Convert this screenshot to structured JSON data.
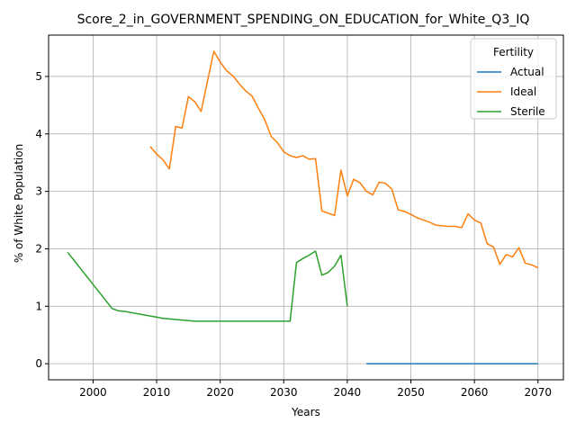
{
  "chart_data": {
    "type": "line",
    "title": "Score_2_in_GOVERNMENT_SPENDING_ON_EDUCATION_for_White_Q3_IQ",
    "xlabel": "Years",
    "ylabel": "% of White Population",
    "xlim": [
      1993,
      2074
    ],
    "ylim": [
      -0.28,
      5.72
    ],
    "xticks": [
      2000,
      2010,
      2020,
      2030,
      2040,
      2050,
      2060,
      2070
    ],
    "yticks": [
      0,
      1,
      2,
      3,
      4,
      5
    ],
    "grid": true,
    "legend": {
      "title": "Fertility",
      "placement": "top-right"
    },
    "series": [
      {
        "name": "Actual",
        "color": "#1f77b4",
        "x": [
          2043,
          2045,
          2050,
          2055,
          2060,
          2065,
          2070
        ],
        "y": [
          0,
          0,
          0,
          0,
          0,
          0,
          0
        ]
      },
      {
        "name": "Ideal",
        "color": "#ff7f0e",
        "x": [
          2009,
          2010,
          2011,
          2012,
          2013,
          2014,
          2015,
          2016,
          2017,
          2018,
          2019,
          2020,
          2021,
          2022,
          2023,
          2024,
          2025,
          2026,
          2027,
          2028,
          2029,
          2030,
          2031,
          2032,
          2033,
          2034,
          2035,
          2036,
          2037,
          2038,
          2039,
          2040,
          2041,
          2042,
          2043,
          2044,
          2045,
          2046,
          2047,
          2048,
          2049,
          2050,
          2051,
          2052,
          2053,
          2054,
          2055,
          2056,
          2057,
          2058,
          2059,
          2060,
          2061,
          2062,
          2063,
          2064,
          2065,
          2066,
          2067,
          2068,
          2069,
          2070
        ],
        "y": [
          3.78,
          3.65,
          3.55,
          3.39,
          4.13,
          4.1,
          4.65,
          4.56,
          4.39,
          4.92,
          5.44,
          5.25,
          5.1,
          5.01,
          4.87,
          4.75,
          4.66,
          4.45,
          4.25,
          3.96,
          3.85,
          3.69,
          3.62,
          3.59,
          3.62,
          3.56,
          3.57,
          2.66,
          2.62,
          2.58,
          3.37,
          2.92,
          3.21,
          3.15,
          3.0,
          2.94,
          3.16,
          3.14,
          3.04,
          2.68,
          2.65,
          2.6,
          2.54,
          2.5,
          2.46,
          2.41,
          2.4,
          2.39,
          2.39,
          2.37,
          2.61,
          2.5,
          2.45,
          2.09,
          2.03,
          1.73,
          1.9,
          1.86,
          2.02,
          1.75,
          1.72,
          1.67
        ]
      },
      {
        "name": "Sterile",
        "color": "#2ca02c",
        "x": [
          1996,
          1997,
          1998,
          1999,
          2000,
          2001,
          2002,
          2003,
          2004,
          2005,
          2006,
          2007,
          2008,
          2009,
          2010,
          2011,
          2012,
          2013,
          2014,
          2015,
          2016,
          2017,
          2018,
          2019,
          2020,
          2021,
          2022,
          2023,
          2024,
          2025,
          2026,
          2027,
          2028,
          2029,
          2030,
          2031,
          2032,
          2033,
          2034,
          2035,
          2036,
          2037,
          2038,
          2039,
          2040
        ],
        "y": [
          1.94,
          1.8,
          1.66,
          1.52,
          1.38,
          1.24,
          1.1,
          0.96,
          0.92,
          0.91,
          0.89,
          0.87,
          0.85,
          0.83,
          0.81,
          0.79,
          0.78,
          0.77,
          0.76,
          0.75,
          0.74,
          0.74,
          0.74,
          0.74,
          0.74,
          0.74,
          0.74,
          0.74,
          0.74,
          0.74,
          0.74,
          0.74,
          0.74,
          0.74,
          0.74,
          0.74,
          1.76,
          1.83,
          1.89,
          1.96,
          1.54,
          1.59,
          1.7,
          1.89,
          1.0
        ]
      }
    ]
  }
}
